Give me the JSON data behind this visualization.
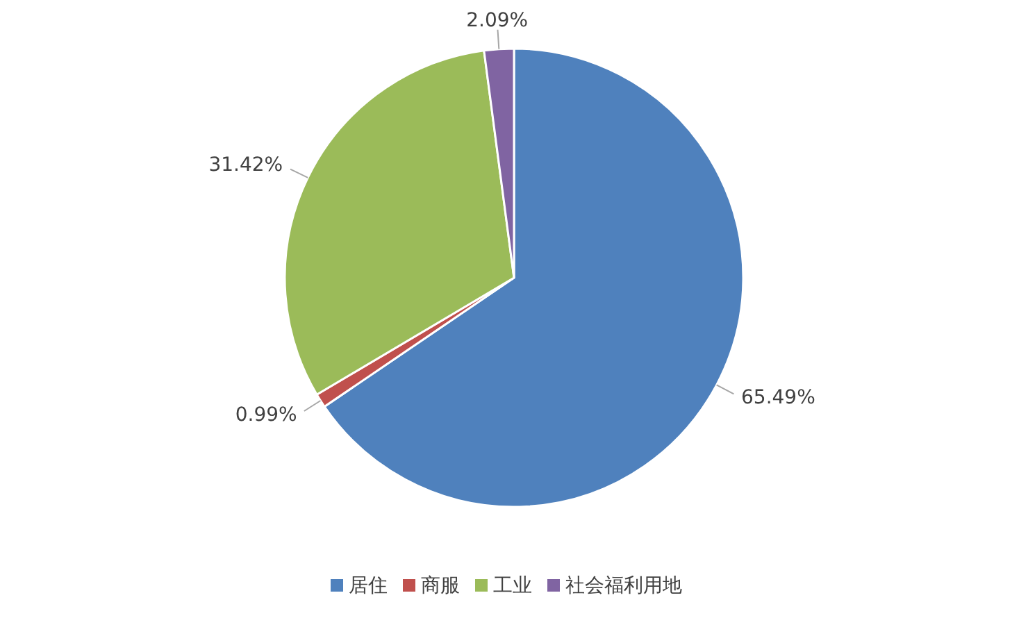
{
  "chart_data": {
    "type": "pie",
    "categories": [
      "居住",
      "商服",
      "工业",
      "社会福利用地"
    ],
    "values": [
      65.49,
      0.99,
      31.42,
      2.09
    ],
    "colors": [
      "#4f81bd",
      "#c0504d",
      "#9bbb59",
      "#8064a2"
    ],
    "value_labels": [
      "65.49%",
      "0.99%",
      "31.42%",
      "2.09%"
    ],
    "legend": "bottom"
  }
}
